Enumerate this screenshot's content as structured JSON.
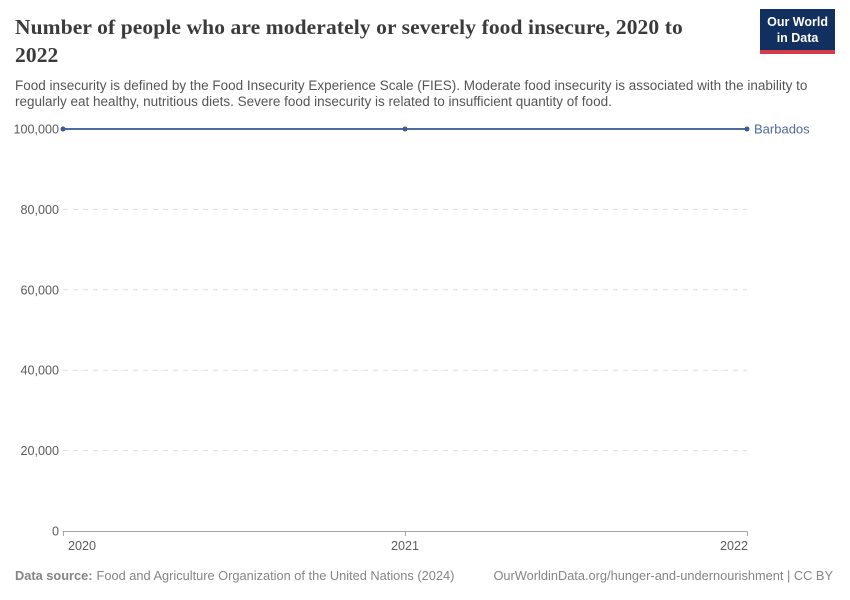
{
  "header": {
    "title": "Number of people who are moderately or severely food insecure, 2020 to 2022",
    "subtitle": "Food insecurity is defined by the Food Insecurity Experience Scale (FIES). Moderate food insecurity is associated with the inability to regularly eat healthy, nutritious diets. Severe food insecurity is related to insufficient quantity of food.",
    "logo": {
      "line1": "Our World",
      "line2": "in Data"
    }
  },
  "chart_data": {
    "type": "line",
    "title": "Number of people who are moderately or severely food insecure, 2020 to 2022",
    "x": [
      2020,
      2021,
      2022
    ],
    "xtick_labels": [
      "2020",
      "2021",
      "2022"
    ],
    "series": [
      {
        "name": "Barbados",
        "values": [
          100000,
          100000,
          100000
        ],
        "color": "#4C6A9C"
      }
    ],
    "xlabel": "",
    "ylabel": "",
    "ylim": [
      0,
      100000
    ],
    "yticks": [
      0,
      20000,
      40000,
      60000,
      80000,
      100000
    ],
    "ytick_labels": [
      "0",
      "20,000",
      "40,000",
      "60,000",
      "80,000",
      "100,000"
    ],
    "grid": "horizontal-dashed",
    "show_markers": true,
    "legend_position": "end-of-line"
  },
  "footer": {
    "datasource_label": "Data source:",
    "datasource_text": "Food and Agriculture Organization of the United Nations (2024)",
    "link": "OurWorldinData.org/hunger-and-undernourishment | CC BY"
  },
  "colors": {
    "line": "#4C6A9C",
    "marker": "#3d5c94",
    "grid": "#dddddd",
    "axis": "#a5a5a5",
    "tick_label": "#5b5b5b",
    "title": "#3b3b3b",
    "subtitle": "#555555",
    "footer": "#858585",
    "logo_bg": "#12305f",
    "logo_accent": "#d33b4e"
  }
}
